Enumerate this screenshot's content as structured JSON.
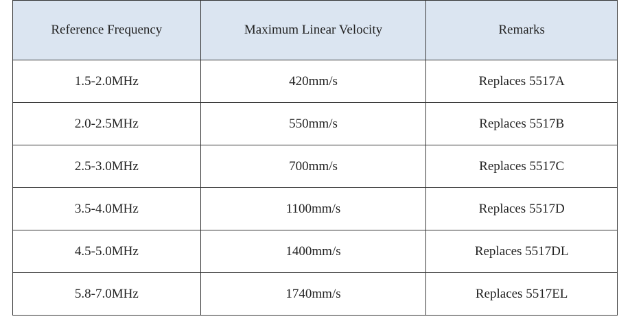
{
  "table": {
    "header": [
      "Reference Frequency",
      "Maximum Linear Velocity",
      "Remarks"
    ],
    "rows": [
      [
        "1.5-2.0MHz",
        "420mm/s",
        "Replaces 5517A"
      ],
      [
        "2.0-2.5MHz",
        "550mm/s",
        "Replaces 5517B"
      ],
      [
        "2.5-3.0MHz",
        "700mm/s",
        "Replaces 5517C"
      ],
      [
        "3.5-4.0MHz",
        "1100mm/s",
        "Replaces 5517D"
      ],
      [
        "4.5-5.0MHz",
        "1400mm/s",
        "Replaces 5517DL"
      ],
      [
        "5.8-7.0MHz",
        "1740mm/s",
        "Replaces 5517EL"
      ]
    ]
  }
}
